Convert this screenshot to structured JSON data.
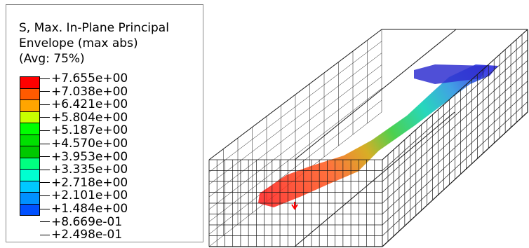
{
  "legend": {
    "title_lines": [
      "S, Max. In-Plane Principal",
      "Envelope (max abs)",
      "(Avg: 75%)"
    ],
    "labels": [
      "+7.655e+00",
      "+7.038e+00",
      "+6.421e+00",
      "+5.804e+00",
      "+5.187e+00",
      "+4.570e+00",
      "+3.953e+00",
      "+3.335e+00",
      "+2.718e+00",
      "+2.101e+00",
      "+1.484e+00",
      "+8.669e-01",
      "+2.498e-01"
    ],
    "colors": [
      "#ff0000",
      "#ff5a00",
      "#ffa500",
      "#c8ff00",
      "#00ff00",
      "#00e000",
      "#00c800",
      "#00ff80",
      "#00ffd0",
      "#00c8ff",
      "#0090ff",
      "#0050ff",
      "#0000ff"
    ]
  },
  "viewport": {
    "mesh_color": "#1a1a1a",
    "face_color": "#f2f2f2"
  }
}
